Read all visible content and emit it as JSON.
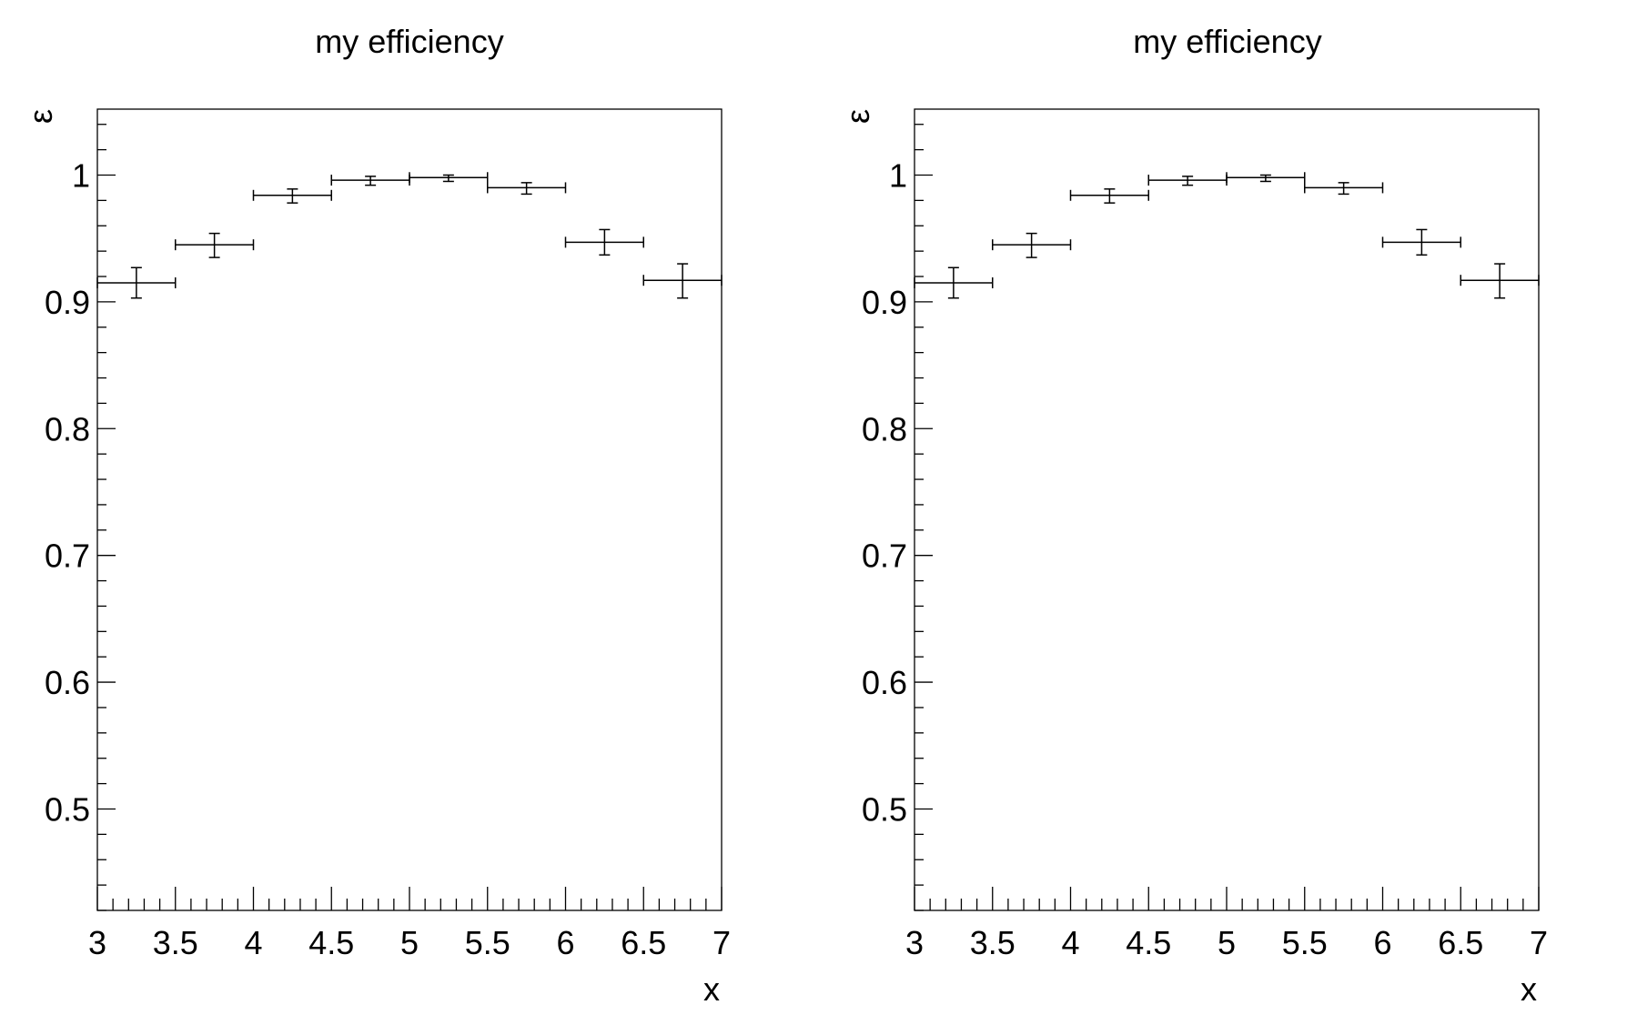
{
  "chart_data": [
    {
      "type": "scatter",
      "title": "my efficiency",
      "xlabel": "x",
      "ylabel": "ε",
      "xlim": [
        3,
        7
      ],
      "ylim": [
        0.42,
        1.052
      ],
      "x_ticks": [
        3,
        3.5,
        4,
        4.5,
        5,
        5.5,
        6,
        6.5,
        7
      ],
      "x_tick_labels": [
        "3",
        "3.5",
        "4",
        "4.5",
        "5",
        "5.5",
        "6",
        "6.5",
        "7"
      ],
      "y_ticks": [
        0.5,
        0.6,
        0.7,
        0.8,
        0.9,
        1
      ],
      "y_tick_labels": [
        "0.5",
        "0.6",
        "0.7",
        "0.8",
        "0.9",
        "1"
      ],
      "grid": false,
      "series": [
        {
          "name": "efficiency",
          "points": [
            {
              "x": 3.25,
              "xlo": 3.0,
              "xhi": 3.5,
              "y": 0.915,
              "ylo": 0.903,
              "yhi": 0.927
            },
            {
              "x": 3.75,
              "xlo": 3.5,
              "xhi": 4.0,
              "y": 0.945,
              "ylo": 0.935,
              "yhi": 0.954
            },
            {
              "x": 4.25,
              "xlo": 4.0,
              "xhi": 4.5,
              "y": 0.984,
              "ylo": 0.978,
              "yhi": 0.989
            },
            {
              "x": 4.75,
              "xlo": 4.5,
              "xhi": 5.0,
              "y": 0.996,
              "ylo": 0.992,
              "yhi": 0.999
            },
            {
              "x": 5.25,
              "xlo": 5.0,
              "xhi": 5.5,
              "y": 0.998,
              "ylo": 0.995,
              "yhi": 1.0
            },
            {
              "x": 5.75,
              "xlo": 5.5,
              "xhi": 6.0,
              "y": 0.99,
              "ylo": 0.985,
              "yhi": 0.994
            },
            {
              "x": 6.25,
              "xlo": 6.0,
              "xhi": 6.5,
              "y": 0.947,
              "ylo": 0.937,
              "yhi": 0.957
            },
            {
              "x": 6.75,
              "xlo": 6.5,
              "xhi": 7.0,
              "y": 0.917,
              "ylo": 0.903,
              "yhi": 0.93
            }
          ]
        }
      ]
    },
    {
      "type": "scatter",
      "title": "my efficiency",
      "xlabel": "x",
      "ylabel": "ε",
      "xlim": [
        3,
        7
      ],
      "ylim": [
        0.42,
        1.052
      ],
      "x_ticks": [
        3,
        3.5,
        4,
        4.5,
        5,
        5.5,
        6,
        6.5,
        7
      ],
      "x_tick_labels": [
        "3",
        "3.5",
        "4",
        "4.5",
        "5",
        "5.5",
        "6",
        "6.5",
        "7"
      ],
      "y_ticks": [
        0.5,
        0.6,
        0.7,
        0.8,
        0.9,
        1
      ],
      "y_tick_labels": [
        "0.5",
        "0.6",
        "0.7",
        "0.8",
        "0.9",
        "1"
      ],
      "grid": false,
      "series": [
        {
          "name": "efficiency",
          "points": [
            {
              "x": 3.25,
              "xlo": 3.0,
              "xhi": 3.5,
              "y": 0.915,
              "ylo": 0.903,
              "yhi": 0.927
            },
            {
              "x": 3.75,
              "xlo": 3.5,
              "xhi": 4.0,
              "y": 0.945,
              "ylo": 0.935,
              "yhi": 0.954
            },
            {
              "x": 4.25,
              "xlo": 4.0,
              "xhi": 4.5,
              "y": 0.984,
              "ylo": 0.978,
              "yhi": 0.989
            },
            {
              "x": 4.75,
              "xlo": 4.5,
              "xhi": 5.0,
              "y": 0.996,
              "ylo": 0.992,
              "yhi": 0.999
            },
            {
              "x": 5.25,
              "xlo": 5.0,
              "xhi": 5.5,
              "y": 0.998,
              "ylo": 0.995,
              "yhi": 1.0
            },
            {
              "x": 5.75,
              "xlo": 5.5,
              "xhi": 6.0,
              "y": 0.99,
              "ylo": 0.985,
              "yhi": 0.994
            },
            {
              "x": 6.25,
              "xlo": 6.0,
              "xhi": 6.5,
              "y": 0.947,
              "ylo": 0.937,
              "yhi": 0.957
            },
            {
              "x": 6.75,
              "xlo": 6.5,
              "xhi": 7.0,
              "y": 0.917,
              "ylo": 0.903,
              "yhi": 0.93
            }
          ]
        }
      ]
    }
  ]
}
